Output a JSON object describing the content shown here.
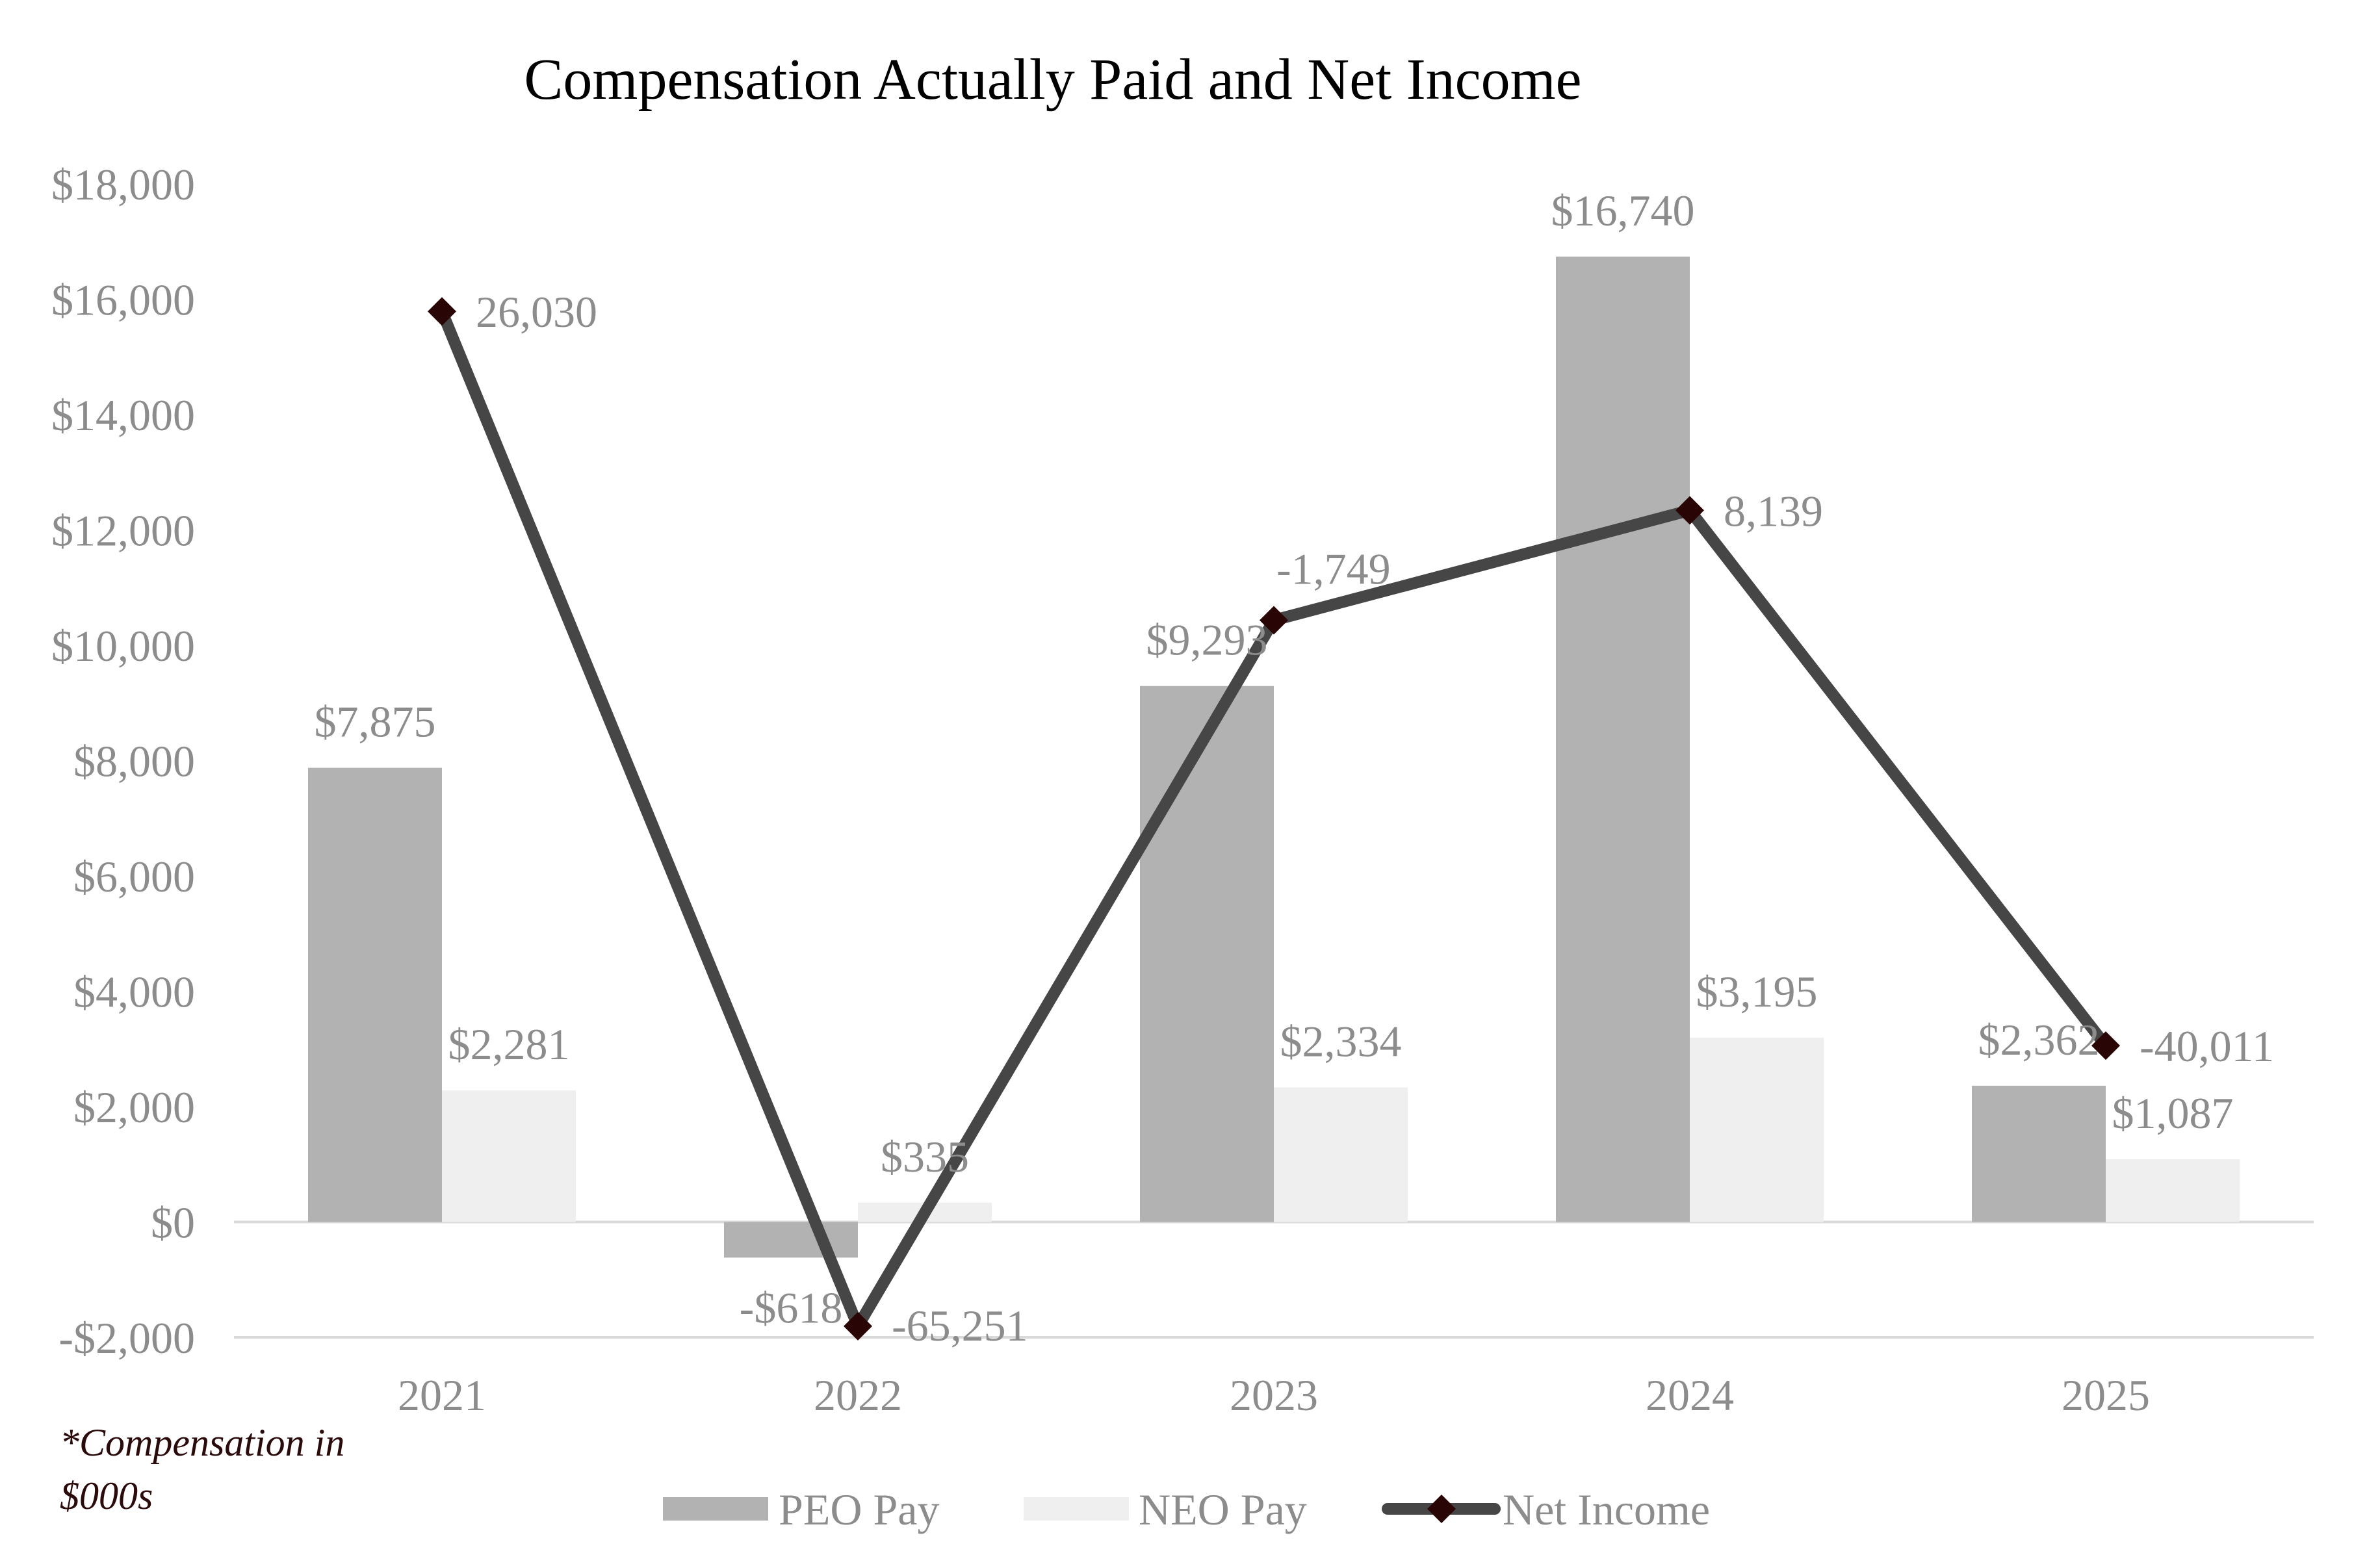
{
  "chart_data": {
    "type": "bar",
    "title": "Compensation Actually Paid and Net Income",
    "categories": [
      "2021",
      "2022",
      "2023",
      "2024",
      "2025"
    ],
    "ylim": [
      -2000,
      18000
    ],
    "yticks": [
      -2000,
      0,
      2000,
      4000,
      6000,
      8000,
      10000,
      12000,
      14000,
      16000,
      18000
    ],
    "ytick_labels": [
      "-$2,000",
      "$0",
      "$2,000",
      "$4,000",
      "$6,000",
      "$8,000",
      "$10,000",
      "$12,000",
      "$14,000",
      "$16,000",
      "$18,000"
    ],
    "grid": false,
    "legend_position": "bottom",
    "note": [
      "*Compensation in",
      "$000s"
    ],
    "series": [
      {
        "name": "PEO Pay",
        "kind": "bar",
        "color": "#b2b2b2",
        "values": [
          7875,
          -618,
          9293,
          16740,
          2362
        ],
        "labels": [
          "$7,875",
          "-$618",
          "$9,293",
          "$16,740",
          "$2,362"
        ]
      },
      {
        "name": "NEO Pay",
        "kind": "bar",
        "color": "#efefef",
        "values": [
          2281,
          335,
          2334,
          3195,
          1087
        ],
        "labels": [
          "$2,281",
          "$335",
          "$2,334",
          "$3,195",
          "$1,087"
        ]
      },
      {
        "name": "Net Income",
        "kind": "line",
        "color": "#464646",
        "marker_color": "#2a0505",
        "values": [
          26030,
          -65251,
          -1749,
          8139,
          -40011
        ],
        "labels": [
          "26,030",
          "-65,251",
          "-1,749",
          "8,139",
          "-40,011"
        ],
        "secondary_axis_hidden": true,
        "secondary_axis_range": [
          -66250,
          37500
        ]
      }
    ]
  }
}
